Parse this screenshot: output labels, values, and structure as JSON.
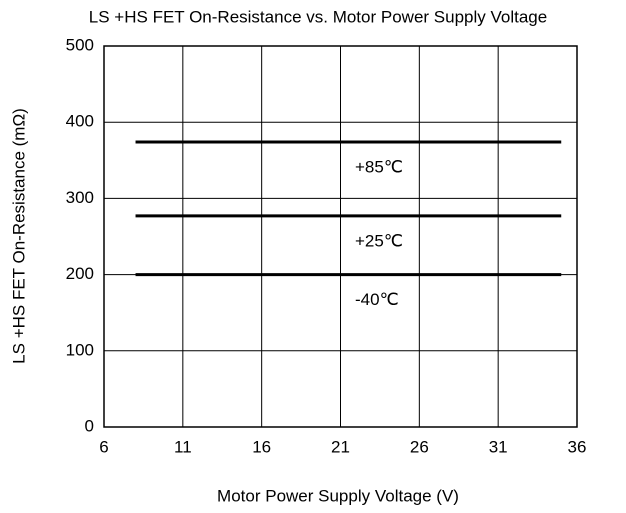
{
  "chart_data": {
    "type": "line",
    "title": "LS +HS FET On-Resistance vs. Motor Power Supply Voltage",
    "x_label": "Motor Power Supply Voltage (V)",
    "y_label": "LS +HS FET On-Resistance (mΩ)",
    "x": [
      8,
      35
    ],
    "series": [
      {
        "name": "+85℃",
        "color": "#000000",
        "values": [
          374,
          374
        ]
      },
      {
        "name": "+25℃",
        "color": "#000000",
        "values": [
          277,
          277
        ]
      },
      {
        "name": "-40℃",
        "color": "#000000",
        "values": [
          200,
          200
        ]
      }
    ],
    "xlim": [
      6,
      36
    ],
    "xticks": [
      6,
      11,
      16,
      21,
      26,
      31,
      36
    ],
    "ylim": [
      0,
      500
    ],
    "yticks": [
      0,
      100,
      200,
      300,
      400,
      500
    ],
    "grid": true
  }
}
